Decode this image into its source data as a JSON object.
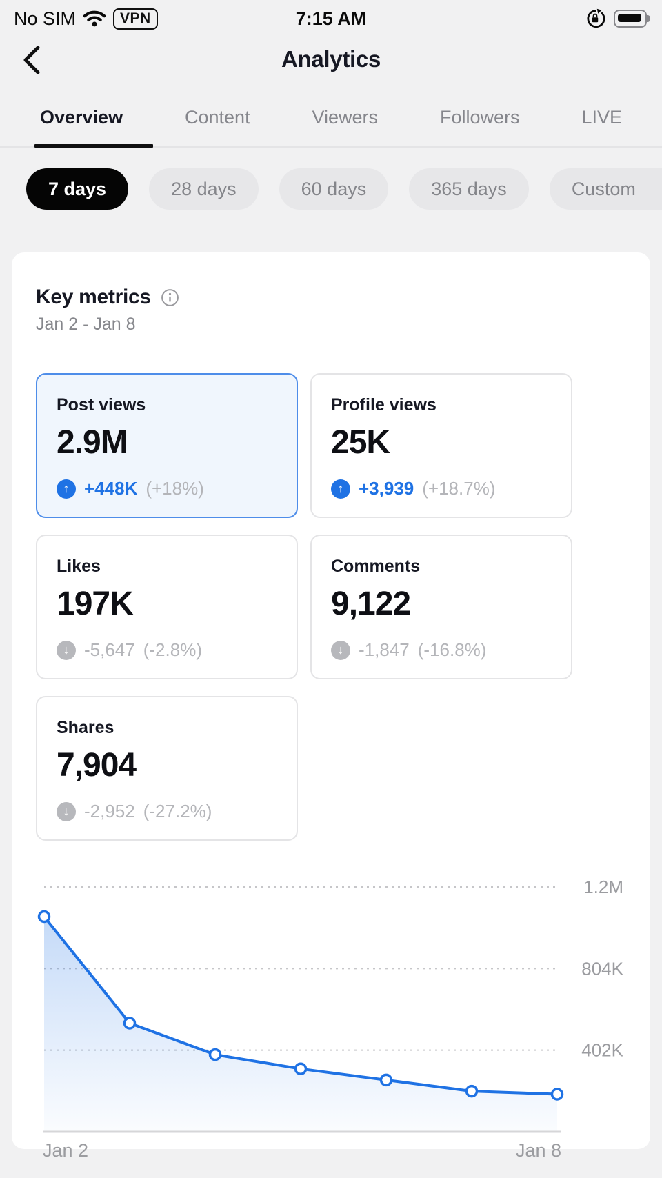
{
  "status_bar": {
    "carrier": "No SIM",
    "wifi_icon": "wifi-icon",
    "vpn_label": "VPN",
    "time": "7:15 AM",
    "rotation_lock_icon": "rotation-lock-icon",
    "battery_icon": "battery-full-icon"
  },
  "header": {
    "title": "Analytics",
    "back_icon": "chevron-left-icon"
  },
  "tabs": {
    "items": [
      {
        "label": "Overview",
        "active": true
      },
      {
        "label": "Content",
        "active": false
      },
      {
        "label": "Viewers",
        "active": false
      },
      {
        "label": "Followers",
        "active": false
      },
      {
        "label": "LIVE",
        "active": false
      }
    ]
  },
  "date_ranges": {
    "items": [
      {
        "label": "7 days",
        "selected": true
      },
      {
        "label": "28 days",
        "selected": false
      },
      {
        "label": "60 days",
        "selected": false
      },
      {
        "label": "365 days",
        "selected": false
      },
      {
        "label": "Custom",
        "selected": false,
        "clipped": true
      }
    ]
  },
  "key_metrics": {
    "title": "Key metrics",
    "info_icon": "info-icon",
    "date_range": "Jan 2 - Jan 8",
    "cards": [
      {
        "label": "Post views",
        "value": "2.9M",
        "delta": "+448K",
        "delta_pct": "(+18%)",
        "direction": "up",
        "selected": true
      },
      {
        "label": "Profile views",
        "value": "25K",
        "delta": "+3,939",
        "delta_pct": "(+18.7%)",
        "direction": "up",
        "selected": false
      },
      {
        "label": "Likes",
        "value": "197K",
        "delta": "-5,647",
        "delta_pct": "(-2.8%)",
        "direction": "down",
        "selected": false
      },
      {
        "label": "Comments",
        "value": "9,122",
        "delta": "-1,847",
        "delta_pct": "(-16.8%)",
        "direction": "down",
        "selected": false
      },
      {
        "label": "Shares",
        "value": "7,904",
        "delta": "-2,952",
        "delta_pct": "(-27.2%)",
        "direction": "down",
        "selected": false
      }
    ]
  },
  "chart_data": {
    "type": "area",
    "series_name": "Post views",
    "x": [
      "Jan 2",
      "Jan 3",
      "Jan 4",
      "Jan 5",
      "Jan 6",
      "Jan 7",
      "Jan 8"
    ],
    "values": [
      1060000,
      535000,
      380000,
      310000,
      255000,
      200000,
      185000
    ],
    "ylim": [
      0,
      1206000
    ],
    "yticks": [
      {
        "value": 1206000,
        "label": "1.2M"
      },
      {
        "value": 804000,
        "label": "804K"
      },
      {
        "value": 402000,
        "label": "402K"
      }
    ],
    "x_axis_labels": [
      "Jan 2",
      "Jan 8"
    ],
    "grid": "horizontal-dashed",
    "legend": "none",
    "line_color": "#1f72e4",
    "point_style": "hollow-circle",
    "area_fill": "vertical-blue-gradient-fade"
  },
  "colors": {
    "accent_blue": "#1f72e4",
    "selected_card_bg": "#f0f6fd",
    "selected_card_border": "#4e8de9",
    "neutral_gray": "#b4b5b9",
    "text_primary": "#161823",
    "text_secondary": "#86878c",
    "page_bg": "#f1f1f2",
    "pill_bg": "#e7e7e9",
    "pill_selected_bg": "#050505"
  }
}
